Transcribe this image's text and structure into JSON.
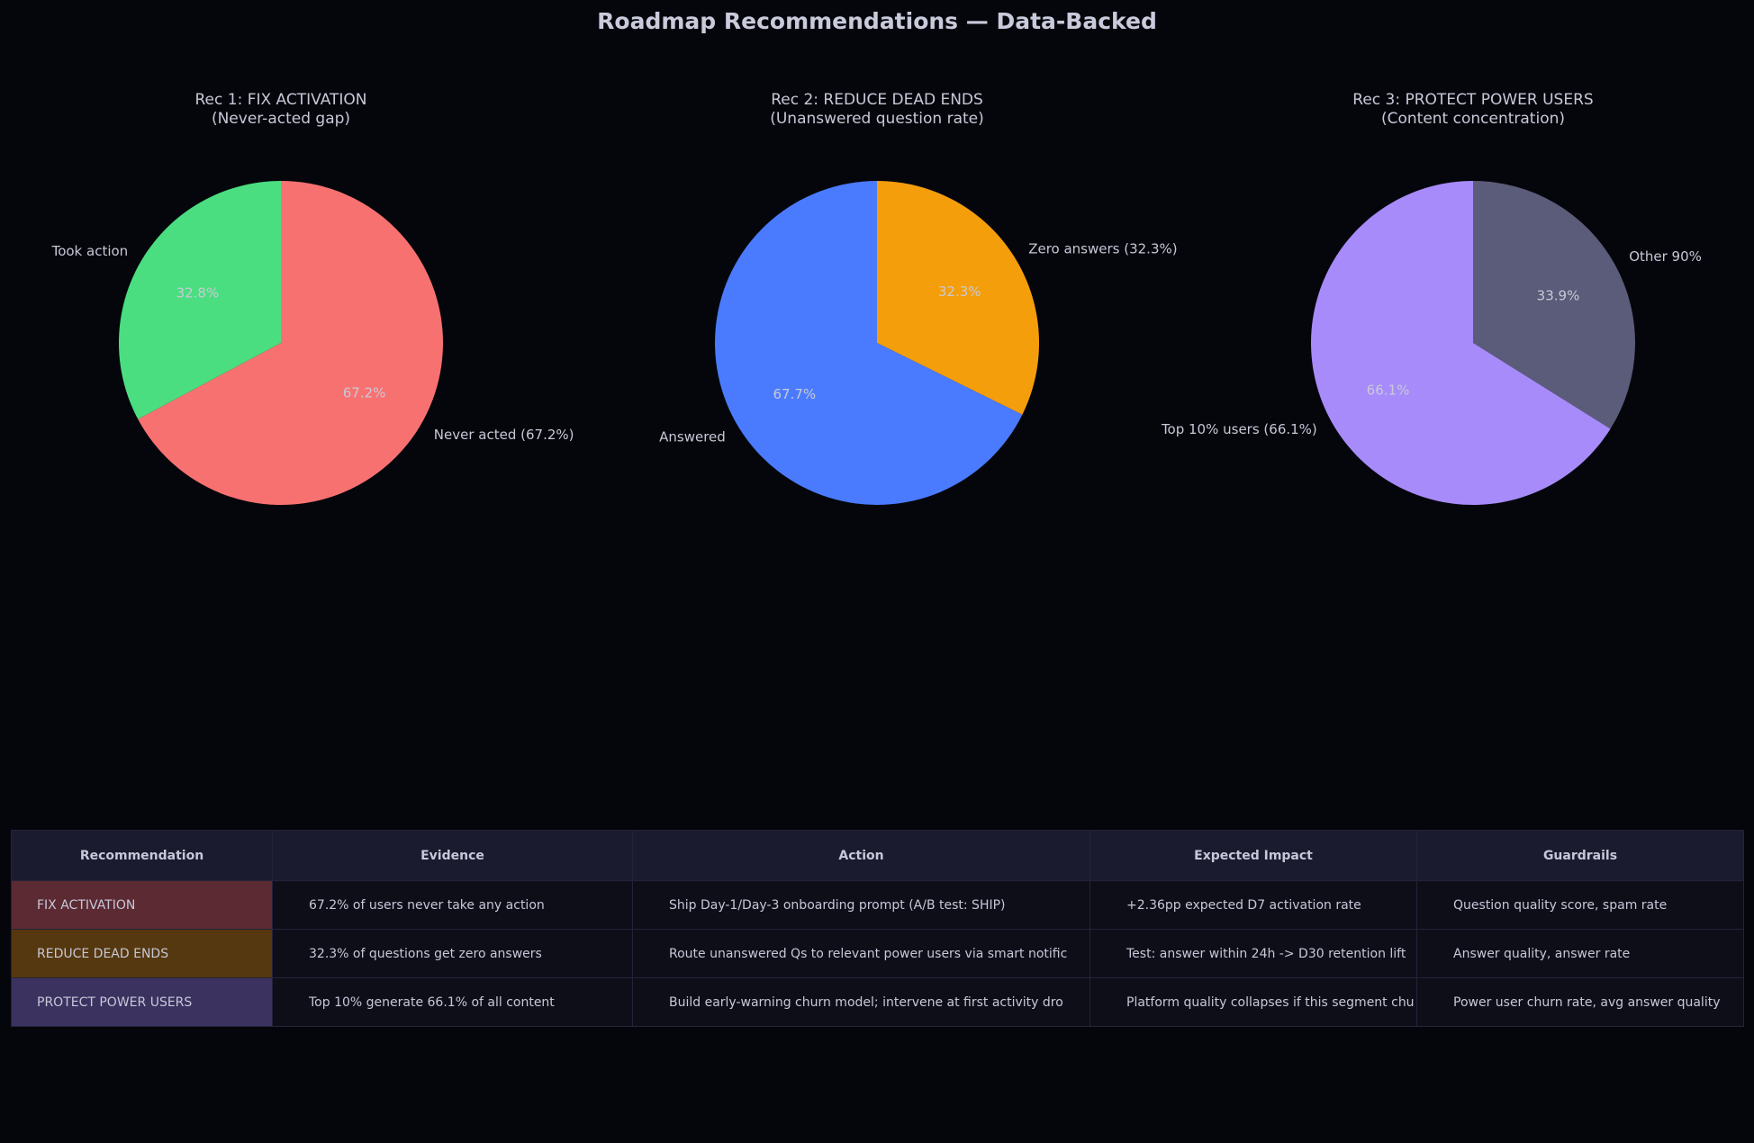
{
  "title": "Roadmap Recommendations — Data-Backed",
  "chart_data": [
    {
      "type": "pie",
      "title": "Rec 1: FIX ACTIVATION",
      "subtitle": "(Never-acted gap)",
      "slices": [
        {
          "label": "Never acted (67.2%)",
          "value": 67.2,
          "pct_label": "67.2%",
          "color": "#f87171"
        },
        {
          "label": "Took action",
          "value": 32.8,
          "pct_label": "32.8%",
          "color": "#4ade80"
        }
      ]
    },
    {
      "type": "pie",
      "title": "Rec 2: REDUCE DEAD ENDS",
      "subtitle": "(Unanswered question rate)",
      "slices": [
        {
          "label": "Zero answers (32.3%)",
          "value": 32.3,
          "pct_label": "32.3%",
          "color": "#f59e0b"
        },
        {
          "label": "Answered",
          "value": 67.7,
          "pct_label": "67.7%",
          "color": "#4a7bff"
        }
      ]
    },
    {
      "type": "pie",
      "title": "Rec 3: PROTECT POWER USERS",
      "subtitle": "(Content concentration)",
      "slices": [
        {
          "label": "Other 90%",
          "value": 33.9,
          "pct_label": "33.9%",
          "color": "#5b5b7a"
        },
        {
          "label": "Top 10% users (66.1%)",
          "value": 66.1,
          "pct_label": "66.1%",
          "color": "#a78bfa"
        }
      ]
    }
  ],
  "table": {
    "headers": [
      "Recommendation",
      "Evidence",
      "Action",
      "Expected Impact",
      "Guardrails"
    ],
    "rows": [
      {
        "color": "#5c2a33",
        "cells": [
          "FIX ACTIVATION",
          "67.2% of users never take any action",
          "Ship Day-1/Day-3 onboarding prompt (A/B test: SHIP)",
          "+2.36pp expected D7 activation rate",
          "Question quality score, spam rate"
        ]
      },
      {
        "color": "#55380f",
        "cells": [
          "REDUCE DEAD ENDS",
          "32.3% of questions get zero answers",
          "Route unanswered Qs to relevant power users via smart notific",
          "Test: answer within 24h -> D30 retention lift",
          "Answer quality, answer rate"
        ]
      },
      {
        "color": "#3b3260",
        "cells": [
          "PROTECT POWER USERS",
          "Top 10% generate 66.1% of all content",
          "Build early-warning churn model; intervene at first activity dro",
          "Platform quality collapses if this segment chu",
          "Power user churn rate, avg answer quality"
        ]
      }
    ]
  }
}
